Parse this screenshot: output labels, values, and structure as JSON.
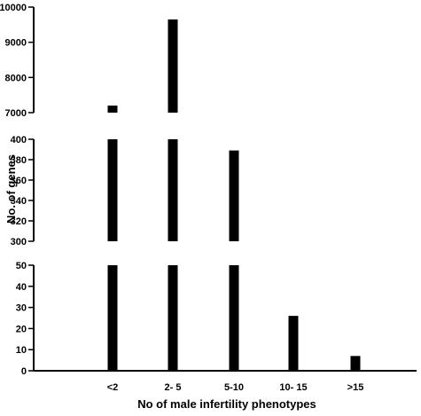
{
  "chart_data": {
    "type": "bar",
    "title": "",
    "xlabel": "No of male infertility phenotypes",
    "ylabel": "No. of genes",
    "categories": [
      "<2",
      "2- 5",
      "5-10",
      "10- 15",
      ">15"
    ],
    "values": [
      7200,
      9650,
      389,
      26,
      7
    ],
    "axis_segments": [
      {
        "ylim": [
          0,
          50
        ],
        "ticks": [
          0,
          10,
          20,
          30,
          40,
          50
        ]
      },
      {
        "ylim": [
          300,
          400
        ],
        "ticks": [
          300,
          320,
          340,
          360,
          380,
          400
        ]
      },
      {
        "ylim": [
          7000,
          10000
        ],
        "ticks": [
          7000,
          8000,
          9000,
          10000
        ]
      }
    ],
    "broken_axis": true,
    "grid": false,
    "legend": "none",
    "bar_color": "#000000"
  }
}
